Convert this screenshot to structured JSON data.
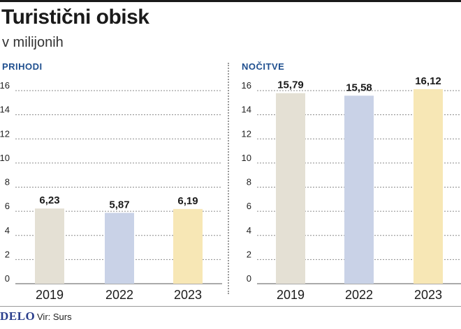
{
  "title": "Turistični obisk",
  "subtitle": "v milijonih",
  "source": "Vir: Surs",
  "logo": "DELO",
  "chart_data": [
    {
      "type": "bar",
      "title": "PRIHODI",
      "categories": [
        "2019",
        "2022",
        "2023"
      ],
      "values": [
        6.23,
        5.87,
        6.19
      ],
      "value_labels": [
        "6,23",
        "5,87",
        "6,19"
      ],
      "yticks": [
        0,
        2,
        4,
        6,
        8,
        10,
        12,
        14,
        16
      ],
      "ylim": [
        0,
        16
      ],
      "colors": [
        "#e4e0d4",
        "#c9d2e7",
        "#f7e7b5"
      ],
      "grid": true
    },
    {
      "type": "bar",
      "title": "NOČITVE",
      "categories": [
        "2019",
        "2022",
        "2023"
      ],
      "values": [
        15.79,
        15.58,
        16.12
      ],
      "value_labels": [
        "15,79",
        "15,58",
        "16,12"
      ],
      "yticks": [
        0,
        2,
        4,
        6,
        8,
        10,
        12,
        14,
        16
      ],
      "ylim": [
        0,
        16
      ],
      "colors": [
        "#e4e0d4",
        "#c9d2e7",
        "#f7e7b5"
      ],
      "grid": true
    }
  ]
}
